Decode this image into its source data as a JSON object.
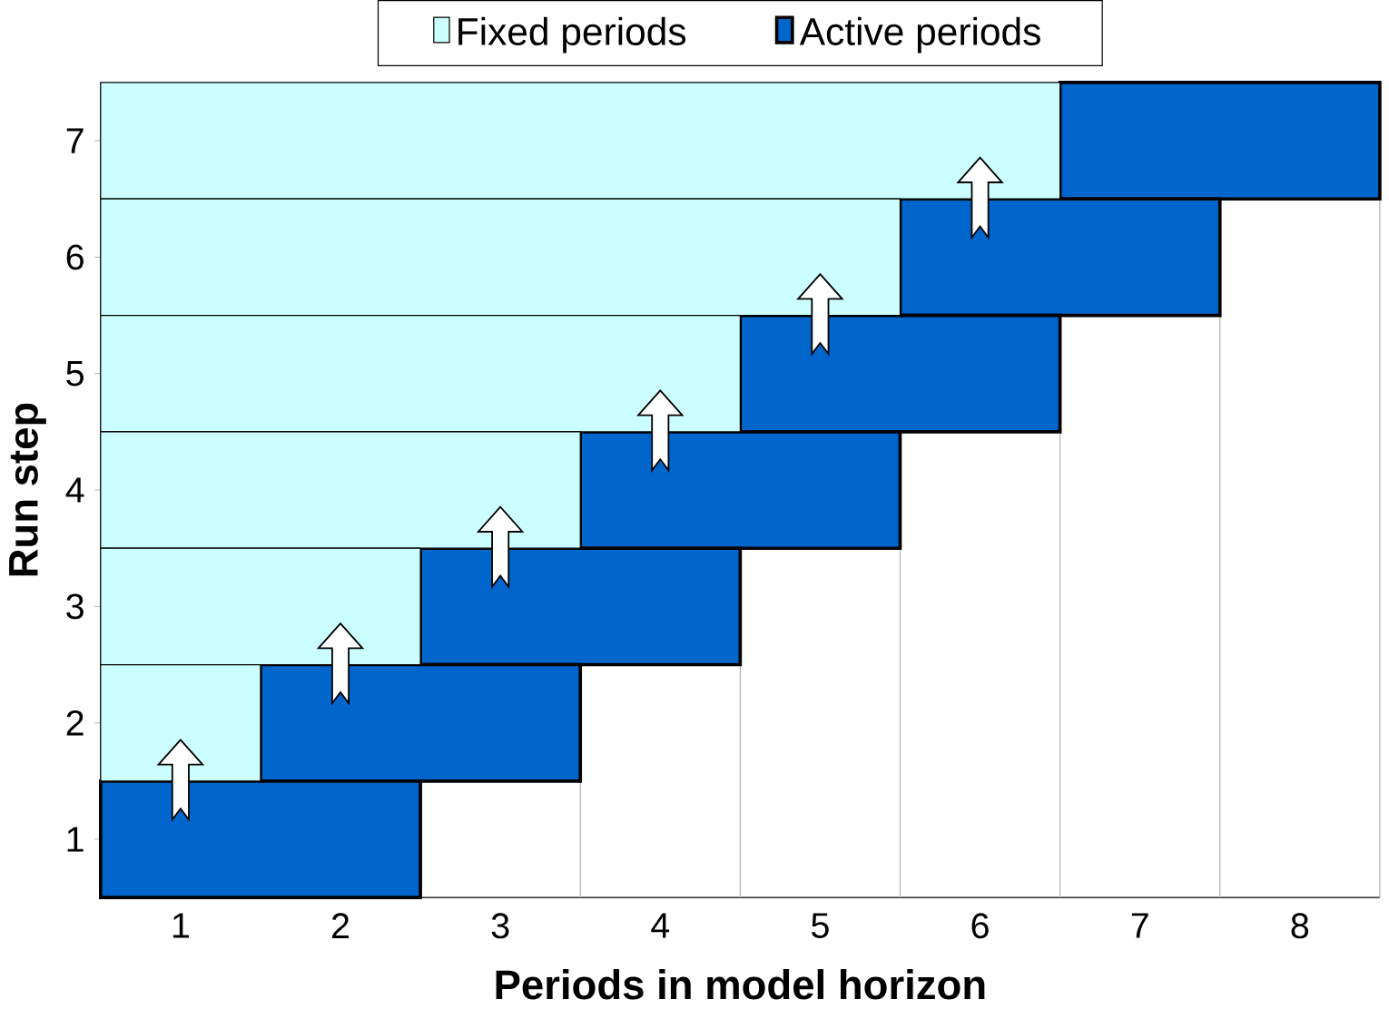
{
  "chart_data": {
    "type": "bar",
    "orientation": "horizontal",
    "stacked": true,
    "xlabel": "Periods in model horizon",
    "ylabel": "Run step",
    "categories": [
      "7",
      "6",
      "5",
      "4",
      "3",
      "2",
      "1"
    ],
    "series": [
      {
        "name": "Fixed periods",
        "color": "#ccffff",
        "values": [
          6,
          5,
          4,
          3,
          2,
          1,
          0
        ]
      },
      {
        "name": "Active periods",
        "color": "#0066cc",
        "values": [
          2,
          2,
          2,
          2,
          2,
          2,
          2
        ]
      }
    ],
    "xlim": [
      0,
      8
    ],
    "xticks": [
      {
        "value": 0,
        "label": null
      },
      {
        "value": 0.5,
        "label": "1"
      },
      {
        "value": 1,
        "label": null
      },
      {
        "value": 1.5,
        "label": "2"
      },
      {
        "value": 2,
        "label": null
      },
      {
        "value": 2.5,
        "label": "3"
      },
      {
        "value": 3,
        "label": null
      },
      {
        "value": 3.5,
        "label": "4"
      },
      {
        "value": 4,
        "label": null
      },
      {
        "value": 4.5,
        "label": "5"
      },
      {
        "value": 5,
        "label": null
      },
      {
        "value": 5.5,
        "label": "6"
      },
      {
        "value": 6,
        "label": null
      },
      {
        "value": 6.5,
        "label": "7"
      },
      {
        "value": 7,
        "label": null
      },
      {
        "value": 7.5,
        "label": "8"
      },
      {
        "value": 8,
        "label": null
      }
    ],
    "grid": "x",
    "legend": "top"
  }
}
